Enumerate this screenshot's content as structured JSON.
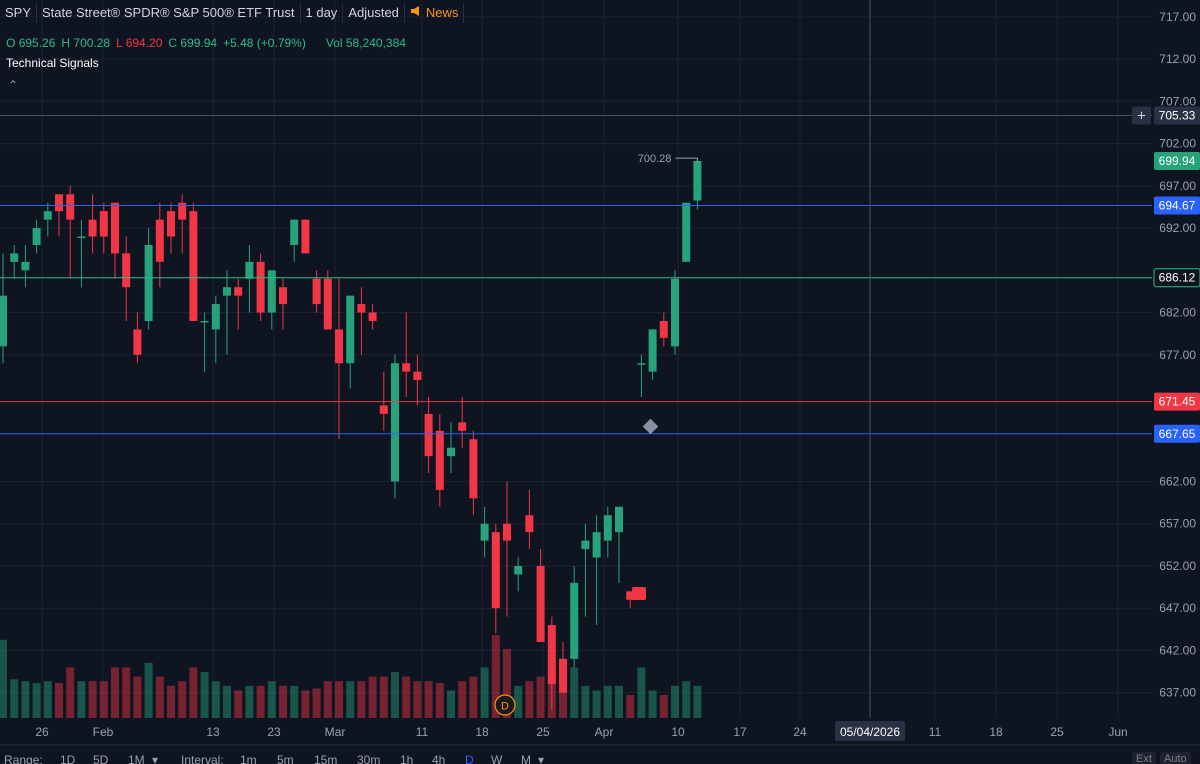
{
  "header": {
    "symbol": "SPY",
    "name": "State Street® SPDR® S&P 500® ETF Trust",
    "interval": "1 day",
    "adjustment": "Adjusted",
    "news_label": "News"
  },
  "ohlc": {
    "o_label": "O",
    "o": "695.26",
    "h_label": "H",
    "h": "700.28",
    "l_label": "L",
    "l": "694.20",
    "c_label": "C",
    "c": "699.94",
    "change": "+5.48 (+0.79%)",
    "vol_label": "Vol",
    "vol": "58,240,384"
  },
  "indicator_label": "Technical Signals",
  "colors": {
    "up": "#26a37a",
    "down": "#f23645",
    "background": "#0f1421",
    "grid": "#1c2233",
    "blue_line": "#2962ff",
    "green_line": "#2dbd85",
    "red_line": "#f23645",
    "crosshair_label": "#2a3145"
  },
  "chart_data": {
    "type": "candlestick",
    "ylim": [
      634,
      719
    ],
    "y_ticks": [
      "717.00",
      "712.00",
      "707.00",
      "702.00",
      "697.00",
      "692.00",
      "682.00",
      "677.00",
      "662.00",
      "657.00",
      "652.00",
      "647.00",
      "642.00",
      "637.00"
    ],
    "y_tick_values": [
      717,
      712,
      707,
      702,
      697,
      692,
      682,
      677,
      662,
      657,
      652,
      647,
      642,
      637
    ],
    "x_tick_labels": [
      "26",
      "Feb",
      "13",
      "23",
      "Mar",
      "11",
      "18",
      "25",
      "Apr",
      "10",
      "17",
      "24",
      "05/04/2026",
      "11",
      "18",
      "25",
      "Jun"
    ],
    "horizontal_levels": [
      {
        "value": 705.33,
        "label": "705.33",
        "kind": "crosshair"
      },
      {
        "value": 699.94,
        "label": "699.94",
        "kind": "last"
      },
      {
        "value": 694.67,
        "label": "694.67",
        "kind": "blue"
      },
      {
        "value": 686.12,
        "label": "686.12",
        "kind": "green"
      },
      {
        "value": 671.45,
        "label": "671.45",
        "kind": "red"
      },
      {
        "value": 667.65,
        "label": "667.65",
        "kind": "blue"
      }
    ],
    "high_annotation": "700.28",
    "event_marker": "D",
    "candles": [
      {
        "o": 678,
        "h": 689,
        "l": 676,
        "c": 684,
        "v": 0.85
      },
      {
        "o": 688,
        "h": 690,
        "l": 686,
        "c": 689,
        "v": 0.42
      },
      {
        "o": 687,
        "h": 690,
        "l": 685,
        "c": 688,
        "v": 0.4
      },
      {
        "o": 690,
        "h": 693,
        "l": 689,
        "c": 692,
        "v": 0.38
      },
      {
        "o": 693,
        "h": 695,
        "l": 691,
        "c": 694,
        "v": 0.4
      },
      {
        "o": 696,
        "h": 696,
        "l": 691,
        "c": 694,
        "v": 0.38
      },
      {
        "o": 696,
        "h": 697,
        "l": 686,
        "c": 693,
        "v": 0.55
      },
      {
        "o": 691,
        "h": 693,
        "l": 685,
        "c": 691,
        "v": 0.4
      },
      {
        "o": 693,
        "h": 696,
        "l": 689,
        "c": 691,
        "v": 0.4
      },
      {
        "o": 694,
        "h": 695,
        "l": 689,
        "c": 691,
        "v": 0.4
      },
      {
        "o": 695,
        "h": 695,
        "l": 686,
        "c": 689,
        "v": 0.55
      },
      {
        "o": 689,
        "h": 691,
        "l": 681,
        "c": 685,
        "v": 0.55
      },
      {
        "o": 680,
        "h": 682,
        "l": 676,
        "c": 677,
        "v": 0.45
      },
      {
        "o": 681,
        "h": 692,
        "l": 680,
        "c": 690,
        "v": 0.6
      },
      {
        "o": 693,
        "h": 695,
        "l": 685,
        "c": 688,
        "v": 0.45
      },
      {
        "o": 694,
        "h": 695,
        "l": 689,
        "c": 691,
        "v": 0.35
      },
      {
        "o": 695,
        "h": 696,
        "l": 689,
        "c": 693,
        "v": 0.4
      },
      {
        "o": 694,
        "h": 695,
        "l": 681,
        "c": 681,
        "v": 0.55
      },
      {
        "o": 681,
        "h": 682,
        "l": 675,
        "c": 681,
        "v": 0.5
      },
      {
        "o": 680,
        "h": 684,
        "l": 676,
        "c": 683,
        "v": 0.4
      },
      {
        "o": 684,
        "h": 687,
        "l": 677,
        "c": 685,
        "v": 0.35
      },
      {
        "o": 685,
        "h": 686,
        "l": 680,
        "c": 684,
        "v": 0.3
      },
      {
        "o": 686,
        "h": 690,
        "l": 682,
        "c": 688,
        "v": 0.35
      },
      {
        "o": 688,
        "h": 689,
        "l": 681,
        "c": 682,
        "v": 0.35
      },
      {
        "o": 682,
        "h": 687,
        "l": 680,
        "c": 687,
        "v": 0.4
      },
      {
        "o": 685,
        "h": 686,
        "l": 680,
        "c": 683,
        "v": 0.35
      },
      {
        "o": 690,
        "h": 693,
        "l": 688,
        "c": 693,
        "v": 0.35
      },
      {
        "o": 693,
        "h": 693,
        "l": 689,
        "c": 689,
        "v": 0.3
      },
      {
        "o": 686,
        "h": 687,
        "l": 682,
        "c": 683,
        "v": 0.32
      },
      {
        "o": 686,
        "h": 687,
        "l": 680,
        "c": 680,
        "v": 0.4
      },
      {
        "o": 680,
        "h": 686,
        "l": 667,
        "c": 676,
        "v": 0.4
      },
      {
        "o": 676,
        "h": 684,
        "l": 673,
        "c": 684,
        "v": 0.4
      },
      {
        "o": 683,
        "h": 685,
        "l": 677,
        "c": 682,
        "v": 0.4
      },
      {
        "o": 682,
        "h": 683,
        "l": 680,
        "c": 681,
        "v": 0.45
      },
      {
        "o": 671,
        "h": 675,
        "l": 668,
        "c": 670,
        "v": 0.45
      },
      {
        "o": 662,
        "h": 677,
        "l": 660,
        "c": 676,
        "v": 0.5
      },
      {
        "o": 676,
        "h": 682,
        "l": 672,
        "c": 675,
        "v": 0.45
      },
      {
        "o": 675,
        "h": 677,
        "l": 671,
        "c": 674,
        "v": 0.4
      },
      {
        "o": 670,
        "h": 672,
        "l": 663,
        "c": 665,
        "v": 0.4
      },
      {
        "o": 668,
        "h": 670,
        "l": 659,
        "c": 661,
        "v": 0.38
      },
      {
        "o": 665,
        "h": 669,
        "l": 663,
        "c": 666,
        "v": 0.3
      },
      {
        "o": 669,
        "h": 672,
        "l": 666,
        "c": 668,
        "v": 0.4
      },
      {
        "o": 667,
        "h": 668,
        "l": 658,
        "c": 660,
        "v": 0.45
      },
      {
        "o": 655,
        "h": 659,
        "l": 653,
        "c": 657,
        "v": 0.55
      },
      {
        "o": 656,
        "h": 657,
        "l": 644,
        "c": 647,
        "v": 0.9
      },
      {
        "o": 657,
        "h": 662,
        "l": 646,
        "c": 655,
        "v": 0.75
      },
      {
        "o": 651,
        "h": 653,
        "l": 649,
        "c": 652,
        "v": 0.35
      },
      {
        "o": 658,
        "h": 661,
        "l": 654,
        "c": 656,
        "v": 0.4
      },
      {
        "o": 652,
        "h": 654,
        "l": 643,
        "c": 643,
        "v": 0.45
      },
      {
        "o": 645,
        "h": 646,
        "l": 635,
        "c": 638,
        "v": 0.5
      },
      {
        "o": 641,
        "h": 643,
        "l": 637,
        "c": 637,
        "v": 0.35
      },
      {
        "o": 641,
        "h": 652,
        "l": 640,
        "c": 650,
        "v": 0.55
      },
      {
        "o": 654,
        "h": 657,
        "l": 646,
        "c": 655,
        "v": 0.35
      },
      {
        "o": 653,
        "h": 658,
        "l": 645,
        "c": 656,
        "v": 0.3
      },
      {
        "o": 655,
        "h": 659,
        "l": 653,
        "c": 658,
        "v": 0.35
      },
      {
        "o": 656,
        "h": 659,
        "l": 650,
        "c": 659,
        "v": 0.35
      },
      {
        "o": 649,
        "h": 649,
        "l": 647,
        "c": 648,
        "v": 0.25
      },
      {
        "o": 676,
        "h": 677,
        "l": 672,
        "c": 676,
        "v": 0.55
      },
      {
        "o": 675,
        "h": 680,
        "l": 674,
        "c": 680,
        "v": 0.3
      },
      {
        "o": 681,
        "h": 682,
        "l": 678,
        "c": 679,
        "v": 0.25
      },
      {
        "o": 678,
        "h": 687,
        "l": 677,
        "c": 686,
        "v": 0.35
      },
      {
        "o": 688,
        "h": 695,
        "l": 688,
        "c": 695,
        "v": 0.4
      },
      {
        "o": 695.26,
        "h": 700.28,
        "l": 694.2,
        "c": 699.94,
        "v": 0.35
      }
    ]
  },
  "footer": {
    "range_label": "Range:",
    "ranges": [
      "1D",
      "5D",
      "1M"
    ],
    "interval_label": "Interval:",
    "intervals": [
      "1m",
      "5m",
      "15m",
      "30m",
      "1h",
      "4h",
      "D",
      "W",
      "M"
    ],
    "ext": "Ext",
    "auto": "Auto"
  }
}
